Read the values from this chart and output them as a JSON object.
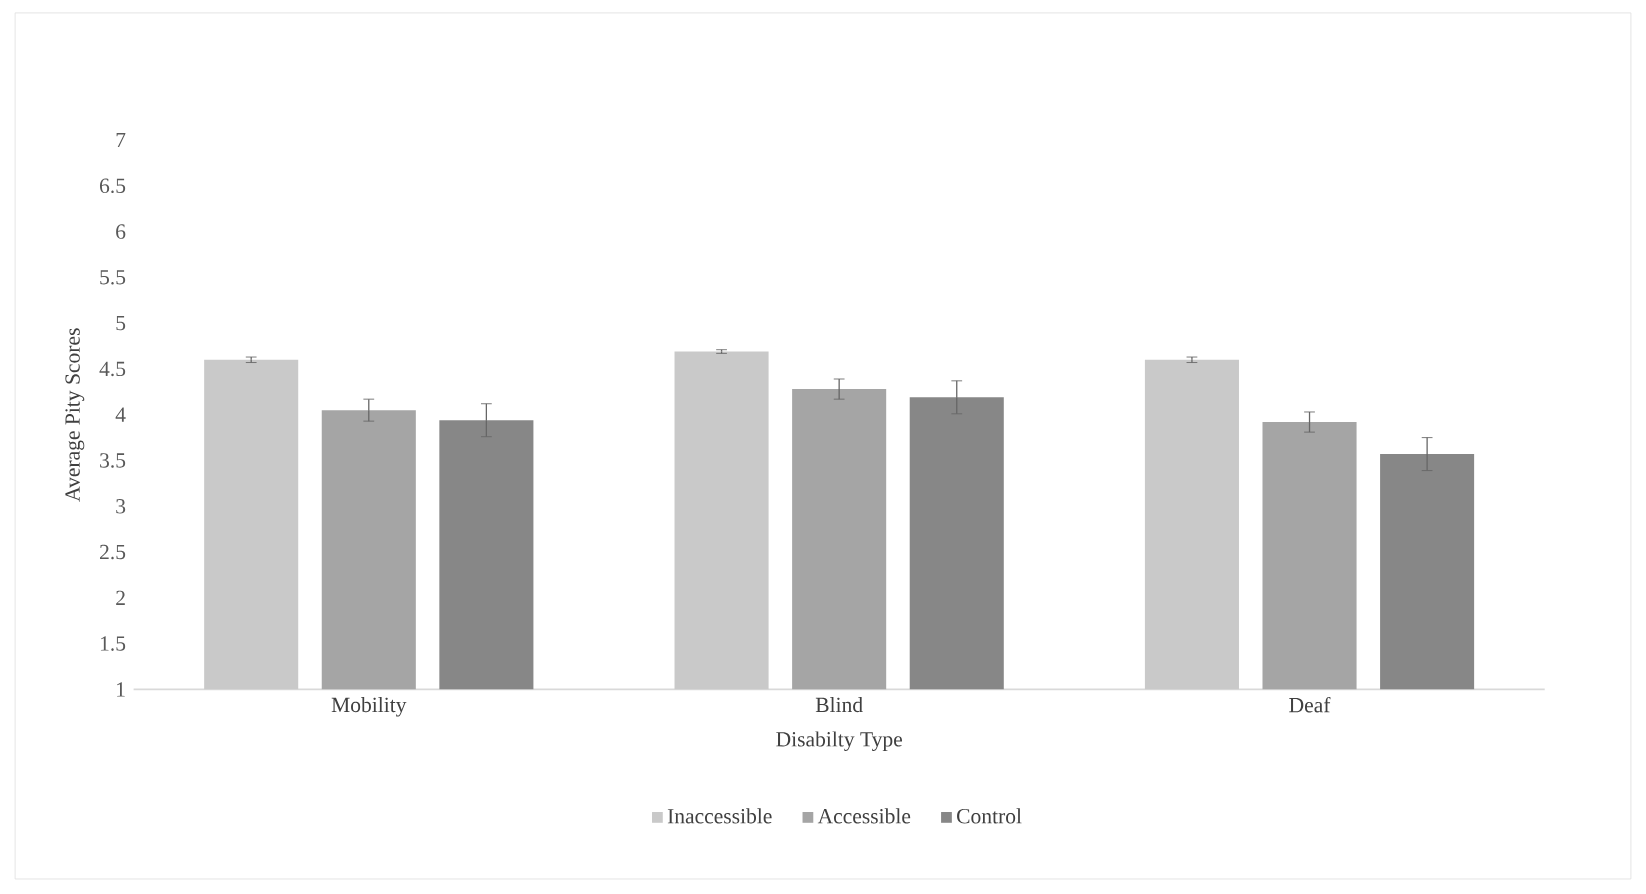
{
  "chart_data": {
    "type": "bar",
    "xlabel": "Disabilty Type",
    "ylabel": "Average Pity Scores",
    "categories": [
      "Mobility",
      "Blind",
      "Deaf"
    ],
    "series": [
      {
        "name": "Inaccessible",
        "color": "#c9c9c9",
        "values": [
          4.6,
          4.69,
          4.6
        ],
        "errors": [
          0.03,
          0.02,
          0.03
        ]
      },
      {
        "name": "Accessible",
        "color": "#a5a5a5",
        "values": [
          4.05,
          4.28,
          3.92
        ],
        "errors": [
          0.12,
          0.11,
          0.11
        ]
      },
      {
        "name": "Control",
        "color": "#878787",
        "values": [
          3.94,
          4.19,
          3.57
        ],
        "errors": [
          0.18,
          0.18,
          0.18
        ]
      }
    ],
    "ylim": [
      1,
      7
    ],
    "yticks": [
      1,
      1.5,
      2,
      2.5,
      3,
      3.5,
      4,
      4.5,
      5,
      5.5,
      6,
      6.5,
      7
    ],
    "legend": "bottom",
    "grid": false
  }
}
